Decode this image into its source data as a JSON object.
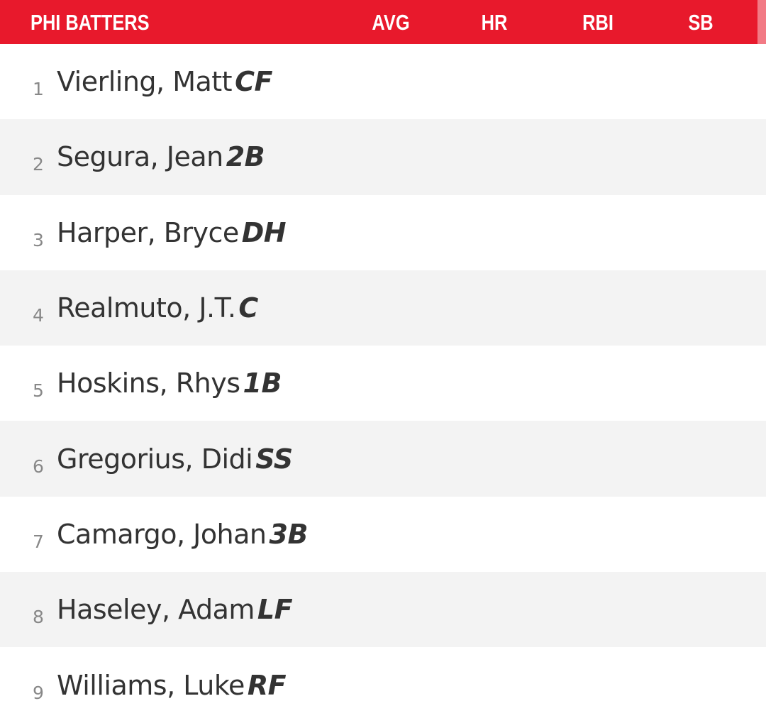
{
  "header": {
    "title": "PHI BATTERS",
    "columns": [
      "AVG",
      "HR",
      "RBI",
      "SB"
    ]
  },
  "colors": {
    "header_bg": "#e8192c",
    "row_alt": "#f3f3f3"
  },
  "batters": [
    {
      "order": "1",
      "name": "Vierling, Matt",
      "pos": "CF"
    },
    {
      "order": "2",
      "name": "Segura, Jean",
      "pos": "2B"
    },
    {
      "order": "3",
      "name": "Harper, Bryce",
      "pos": "DH"
    },
    {
      "order": "4",
      "name": "Realmuto, J.T.",
      "pos": "C"
    },
    {
      "order": "5",
      "name": "Hoskins, Rhys",
      "pos": "1B"
    },
    {
      "order": "6",
      "name": "Gregorius, Didi",
      "pos": "SS"
    },
    {
      "order": "7",
      "name": "Camargo, Johan",
      "pos": "3B"
    },
    {
      "order": "8",
      "name": "Haseley, Adam",
      "pos": "LF"
    },
    {
      "order": "9",
      "name": "Williams, Luke",
      "pos": "RF"
    }
  ]
}
